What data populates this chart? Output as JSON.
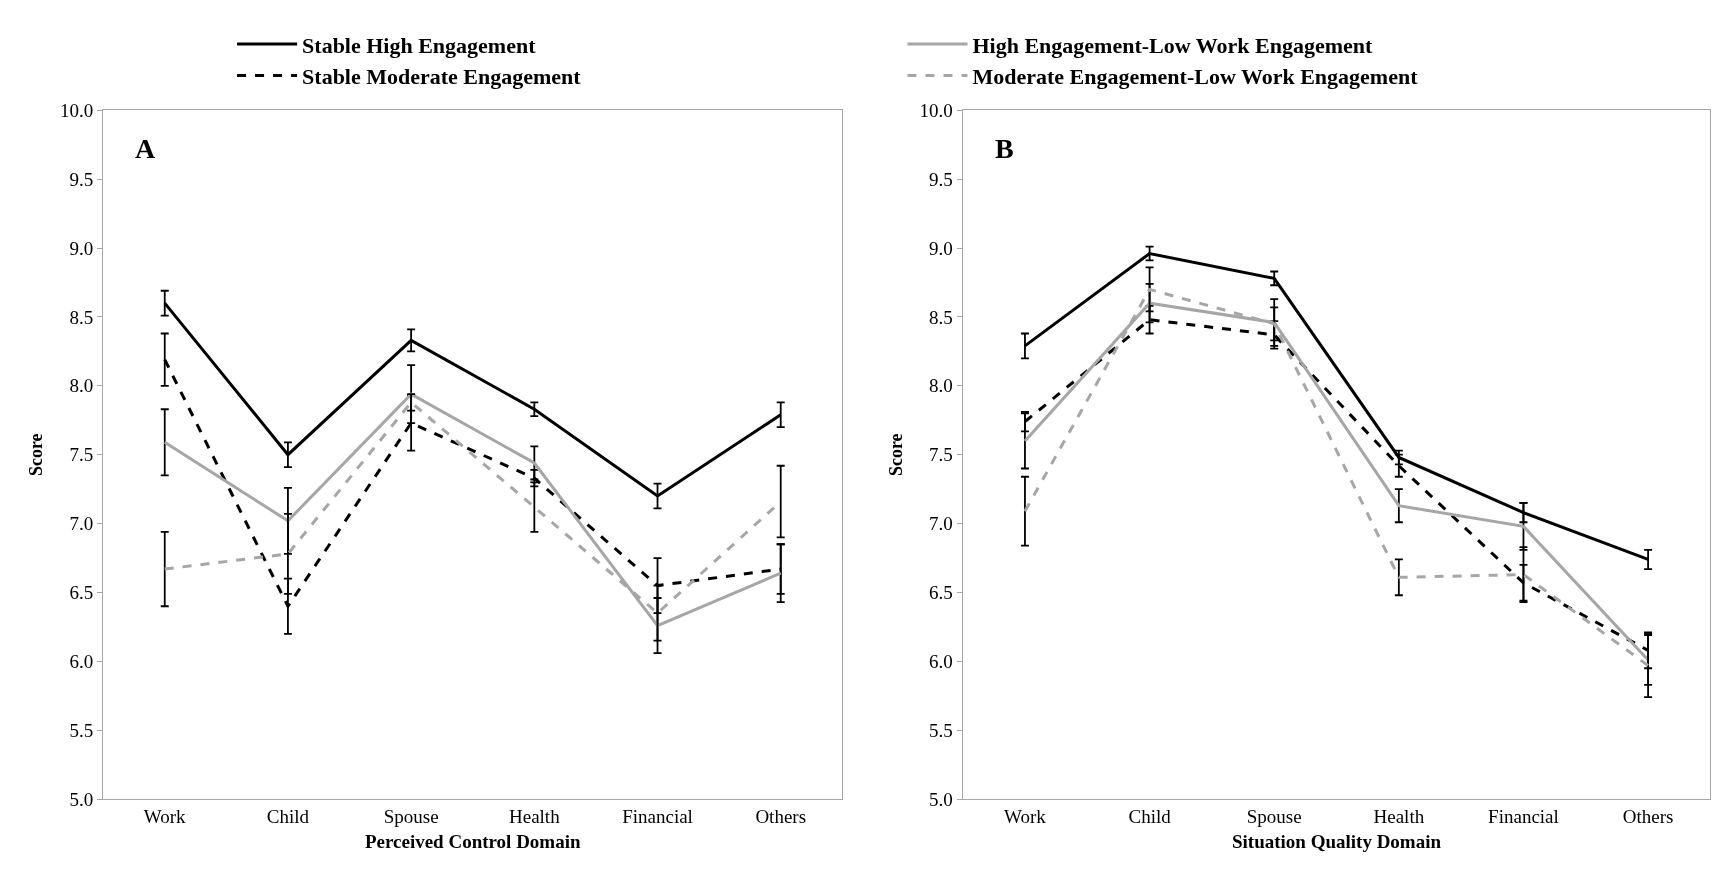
{
  "chart_data": [
    {
      "type": "line",
      "xlabel": "Perceived Control Domain",
      "ylabel": "Score",
      "annotations": [
        "A"
      ],
      "categories": [
        "Work",
        "Child",
        "Spouse",
        "Health",
        "Financial",
        "Others"
      ],
      "ylim": [
        5,
        10
      ],
      "yticks": [
        {
          "value": 5,
          "label": "5.0"
        },
        {
          "value": 5.5,
          "label": "5.5"
        },
        {
          "value": 6,
          "label": "6.0"
        },
        {
          "value": 6.5,
          "label": "6.5"
        },
        {
          "value": 7,
          "label": "7.0"
        },
        {
          "value": 7.5,
          "label": "7.5"
        },
        {
          "value": 8,
          "label": "8.0"
        },
        {
          "value": 8.5,
          "label": "8.5"
        },
        {
          "value": 9,
          "label": "9.0"
        },
        {
          "value": 9.5,
          "label": "9.5"
        },
        {
          "value": 10,
          "label": "10.0"
        }
      ],
      "legend": "top",
      "series": [
        {
          "name": "Stable High Engagement",
          "color": "#000000",
          "line_style": "solid",
          "values": [
            8.6,
            7.5,
            8.33,
            7.83,
            7.2,
            7.79
          ],
          "errors": [
            0.09,
            0.09,
            0.08,
            0.05,
            0.09,
            0.09
          ]
        },
        {
          "name": "Stable Moderate Engagement",
          "color": "#000000",
          "line_style": "dashed",
          "values": [
            8.19,
            6.4,
            7.73,
            7.33,
            6.55,
            6.67
          ],
          "errors": [
            0.19,
            0.2,
            0.2,
            0.06,
            0.2,
            0.18
          ]
        },
        {
          "name": "High Engagement-Low Work Engagement",
          "color": "#a6a6a6",
          "line_style": "solid",
          "values": [
            7.59,
            7.02,
            7.94,
            7.44,
            6.26,
            6.64
          ],
          "errors": [
            0.24,
            0.24,
            0.21,
            0.12,
            0.2,
            0.21
          ]
        },
        {
          "name": "Moderate Engagement-Low Work Engagement",
          "color": "#a6a6a6",
          "line_style": "dashed",
          "values": [
            6.67,
            6.78,
            7.88,
            7.12,
            6.35,
            7.16
          ],
          "errors": [
            0.27,
            0.29,
            0.06,
            0.18,
            0.2,
            0.26
          ]
        }
      ]
    },
    {
      "type": "line",
      "xlabel": "Situation Quality Domain",
      "ylabel": "Score",
      "annotations": [
        "B"
      ],
      "categories": [
        "Work",
        "Child",
        "Spouse",
        "Health",
        "Financial",
        "Others"
      ],
      "ylim": [
        5,
        10
      ],
      "yticks": [
        {
          "value": 5,
          "label": "5.0"
        },
        {
          "value": 5.5,
          "label": "5.5"
        },
        {
          "value": 6,
          "label": "6.0"
        },
        {
          "value": 6.5,
          "label": "6.5"
        },
        {
          "value": 7,
          "label": "7.0"
        },
        {
          "value": 7.5,
          "label": "7.5"
        },
        {
          "value": 8,
          "label": "8.0"
        },
        {
          "value": 8.5,
          "label": "8.5"
        },
        {
          "value": 9,
          "label": "9.0"
        },
        {
          "value": 9.5,
          "label": "9.5"
        },
        {
          "value": 10,
          "label": "10.0"
        }
      ],
      "series": [
        {
          "color": "#000000",
          "line_style": "solid",
          "values": [
            8.29,
            8.96,
            8.78,
            7.48,
            7.08,
            6.74
          ],
          "errors": [
            0.09,
            0.05,
            0.05,
            0.05,
            0.07,
            0.07
          ]
        },
        {
          "color": "#000000",
          "line_style": "dashed",
          "values": [
            7.74,
            8.48,
            8.37,
            7.42,
            6.57,
            6.08
          ],
          "errors": [
            0.07,
            0.1,
            0.1,
            0.08,
            0.13,
            0.13
          ]
        },
        {
          "color": "#a6a6a6",
          "line_style": "solid",
          "values": [
            7.6,
            8.6,
            8.46,
            7.13,
            6.98,
            6.01
          ],
          "errors": [
            0.2,
            0.14,
            0.17,
            0.12,
            0.17,
            0.18
          ]
        },
        {
          "color": "#a6a6a6",
          "line_style": "dashed",
          "values": [
            7.09,
            8.7,
            8.45,
            6.61,
            6.63,
            5.97
          ],
          "errors": [
            0.25,
            0.16,
            0.12,
            0.13,
            0.2,
            0.23
          ]
        }
      ]
    }
  ]
}
